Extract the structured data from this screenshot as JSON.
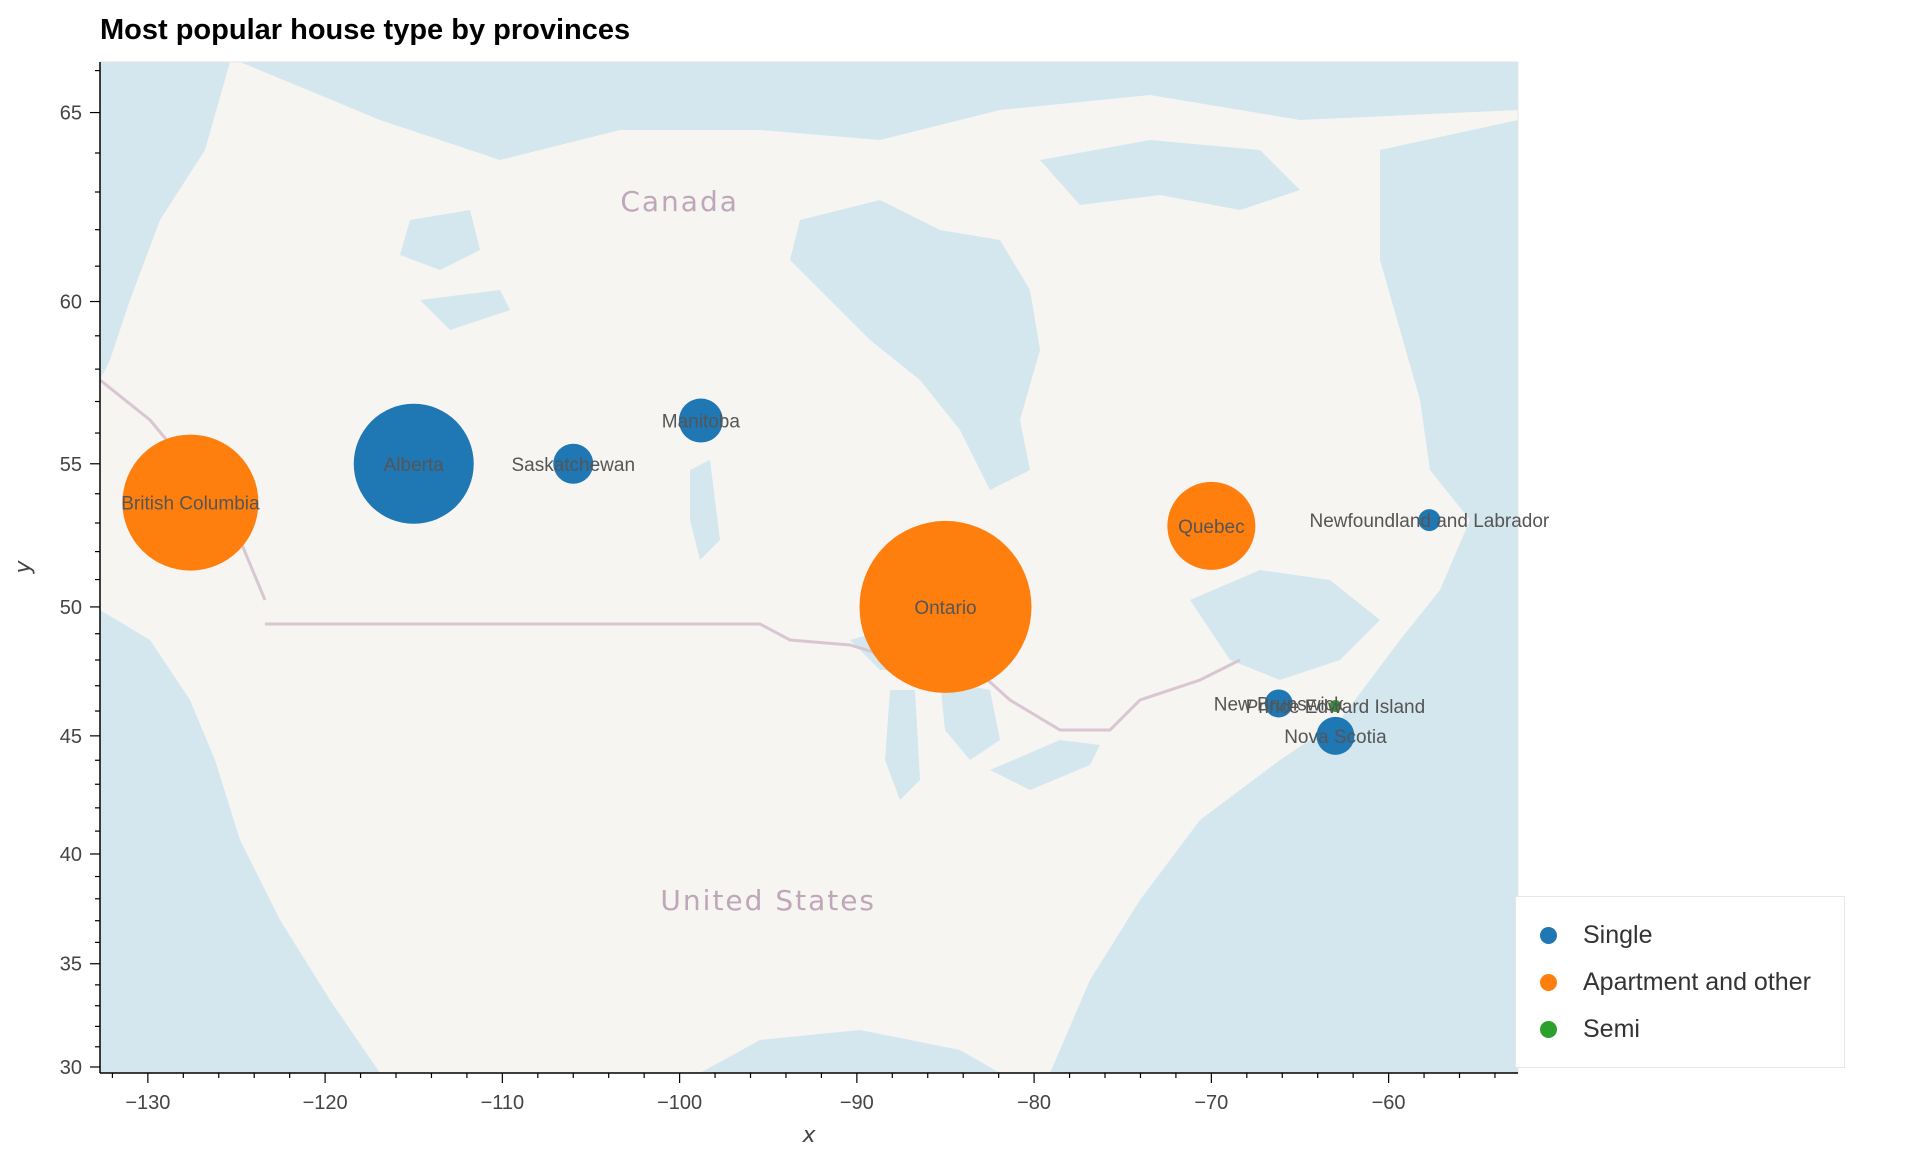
{
  "title": "Most popular house type by provinces",
  "map": {
    "country_labels": [
      {
        "name": "Canada",
        "lon": -100,
        "lat": 62.5
      },
      {
        "name": "United States",
        "lon": -95,
        "lat": 37.5
      }
    ],
    "colors": {
      "water": "#d4e7ee",
      "land": "#f6f5f2",
      "border": "#d9c6d3"
    }
  },
  "chart_data": {
    "type": "scatter",
    "title": "Most popular house type by provinces",
    "xlabel": "x",
    "ylabel": "y",
    "xlim": [
      -132.7,
      -52.7
    ],
    "ylim": [
      29.7,
      66.2
    ],
    "x_ticks": [
      -130,
      -120,
      -110,
      -100,
      -90,
      -80,
      -70,
      -60
    ],
    "x_tick_labels": [
      "−130",
      "−120",
      "−110",
      "−100",
      "−90",
      "−80",
      "−70",
      "−60"
    ],
    "y_ticks": [
      30,
      35,
      40,
      45,
      50,
      55,
      60,
      65
    ],
    "y_tick_labels": [
      "30",
      "35",
      "40",
      "45",
      "50",
      "55",
      "60",
      "65"
    ],
    "legend_position": "bottom-right",
    "categories": [
      {
        "name": "Single",
        "color": "#1f77b4"
      },
      {
        "name": "Apartment and other",
        "color": "#ff7f0e"
      },
      {
        "name": "Semi",
        "color": "#2ca02c"
      }
    ],
    "points": [
      {
        "province": "British Columbia",
        "x": -127.6,
        "y": 53.7,
        "type": "Apartment and other",
        "size": 68
      },
      {
        "province": "Alberta",
        "x": -115.0,
        "y": 55.0,
        "type": "Single",
        "size": 60
      },
      {
        "province": "Saskatchewan",
        "x": -106.0,
        "y": 55.0,
        "type": "Single",
        "size": 20
      },
      {
        "province": "Manitoba",
        "x": -98.8,
        "y": 56.4,
        "type": "Single",
        "size": 22
      },
      {
        "province": "Ontario",
        "x": -85.0,
        "y": 50.0,
        "type": "Apartment and other",
        "size": 86
      },
      {
        "province": "Quebec",
        "x": -70.0,
        "y": 52.9,
        "type": "Apartment and other",
        "size": 44
      },
      {
        "province": "Newfoundland and Labrador",
        "x": -57.7,
        "y": 53.1,
        "type": "Single",
        "size": 11
      },
      {
        "province": "New Brunswick",
        "x": -66.2,
        "y": 46.3,
        "type": "Single",
        "size": 14
      },
      {
        "province": "Prince Edward Island",
        "x": -63.0,
        "y": 46.2,
        "type": "Semi",
        "size": 6
      },
      {
        "province": "Nova Scotia",
        "x": -63.0,
        "y": 45.0,
        "type": "Single",
        "size": 19
      }
    ]
  }
}
